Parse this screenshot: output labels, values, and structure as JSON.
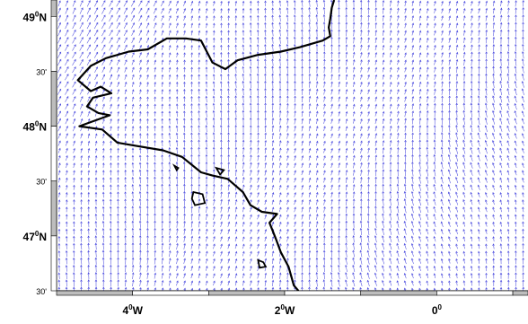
{
  "map": {
    "lat_labels": [
      {
        "value": 49.0,
        "deg": "49",
        "min": "",
        "hemi": "N"
      },
      {
        "value": 48.5,
        "deg": "",
        "min": "30'",
        "hemi": ""
      },
      {
        "value": 48.0,
        "deg": "48",
        "min": "",
        "hemi": "N"
      },
      {
        "value": 47.5,
        "deg": "",
        "min": "30'",
        "hemi": ""
      },
      {
        "value": 47.0,
        "deg": "47",
        "min": "",
        "hemi": "N"
      },
      {
        "value": 46.5,
        "deg": "",
        "min": "30'",
        "hemi": ""
      }
    ],
    "lon_labels": [
      {
        "value": -4,
        "deg": "4",
        "hemi": "W"
      },
      {
        "value": -2,
        "deg": "2",
        "hemi": "W"
      },
      {
        "value": 0,
        "deg": "0",
        "hemi": ""
      }
    ],
    "extent": {
      "lon_min": -5.0,
      "lon_max": 1.2,
      "lat_min": 46.5,
      "lat_max": 49.15
    },
    "arrow_color": "#2a2ad8",
    "coast_color": "#000000",
    "coastline": [
      [
        -1.35,
        49.15
      ],
      [
        -1.38,
        49.08
      ],
      [
        -1.4,
        48.98
      ],
      [
        -1.42,
        48.9
      ],
      [
        -1.4,
        48.82
      ],
      [
        -1.5,
        48.78
      ],
      [
        -1.8,
        48.72
      ],
      [
        -2.05,
        48.68
      ],
      [
        -2.35,
        48.65
      ],
      [
        -2.62,
        48.6
      ],
      [
        -2.78,
        48.52
      ],
      [
        -2.95,
        48.58
      ],
      [
        -3.1,
        48.78
      ],
      [
        -3.3,
        48.8
      ],
      [
        -3.55,
        48.8
      ],
      [
        -3.8,
        48.7
      ],
      [
        -4.05,
        48.68
      ],
      [
        -4.35,
        48.62
      ],
      [
        -4.55,
        48.55
      ],
      [
        -4.72,
        48.42
      ],
      [
        -4.55,
        48.32
      ],
      [
        -4.42,
        48.36
      ],
      [
        -4.28,
        48.3
      ],
      [
        -4.52,
        48.26
      ],
      [
        -4.6,
        48.18
      ],
      [
        -4.45,
        48.12
      ],
      [
        -4.3,
        48.1
      ],
      [
        -4.5,
        48.05
      ],
      [
        -4.7,
        48.0
      ],
      [
        -4.4,
        47.97
      ],
      [
        -4.2,
        47.85
      ],
      [
        -3.95,
        47.82
      ],
      [
        -3.6,
        47.78
      ],
      [
        -3.35,
        47.72
      ],
      [
        -3.1,
        47.58
      ],
      [
        -2.95,
        47.55
      ],
      [
        -2.75,
        47.52
      ],
      [
        -2.55,
        47.4
      ],
      [
        -2.45,
        47.28
      ],
      [
        -2.3,
        47.22
      ],
      [
        -2.1,
        47.2
      ],
      [
        -2.2,
        47.12
      ],
      [
        -2.12,
        46.98
      ],
      [
        -2.05,
        46.85
      ],
      [
        -1.95,
        46.72
      ],
      [
        -1.88,
        46.55
      ],
      [
        -1.82,
        46.5
      ]
    ],
    "islands": [
      [
        [
          -3.2,
          47.4
        ],
        [
          -3.08,
          47.38
        ],
        [
          -3.05,
          47.3
        ],
        [
          -3.18,
          47.28
        ],
        [
          -3.22,
          47.34
        ]
      ],
      [
        [
          -2.35,
          46.78
        ],
        [
          -2.28,
          46.76
        ],
        [
          -2.25,
          46.72
        ],
        [
          -2.33,
          46.71
        ]
      ],
      [
        [
          -3.45,
          47.64
        ],
        [
          -3.4,
          47.62
        ],
        [
          -3.42,
          47.6
        ]
      ],
      [
        [
          -2.9,
          47.62
        ],
        [
          -2.8,
          47.6
        ],
        [
          -2.85,
          47.56
        ]
      ]
    ]
  }
}
